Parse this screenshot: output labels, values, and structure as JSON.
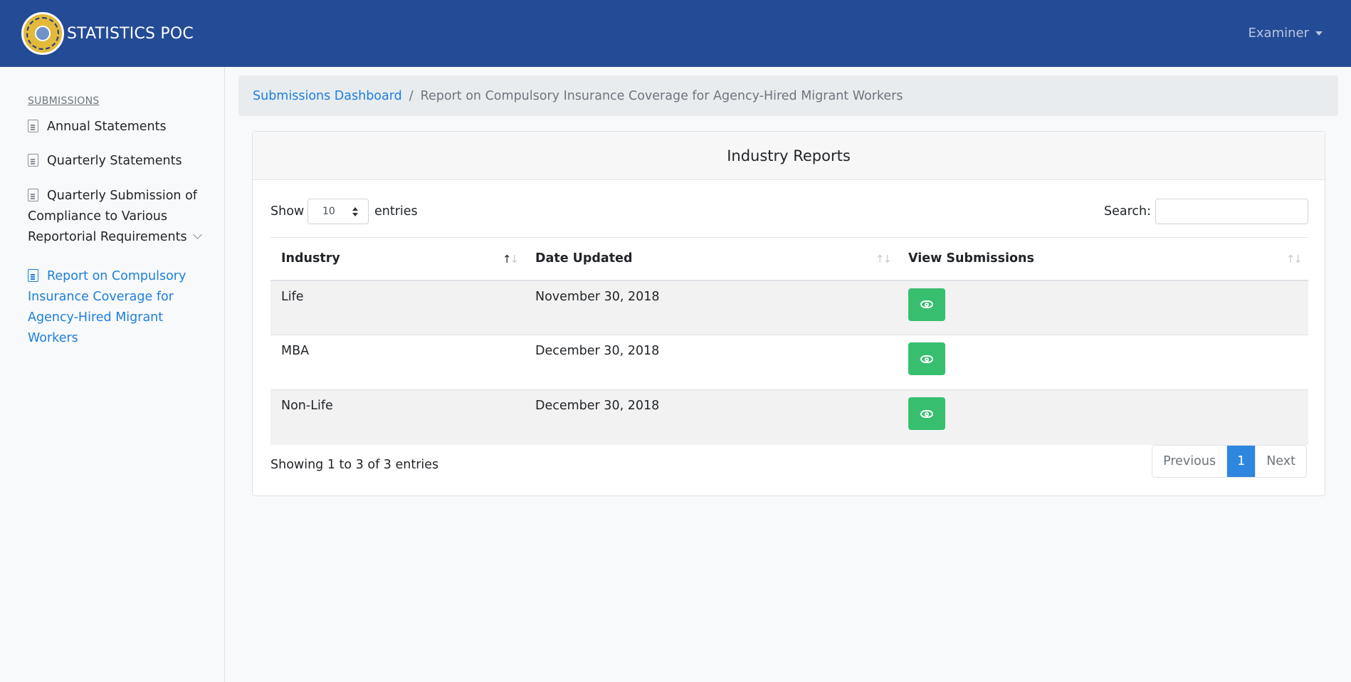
{
  "header": {
    "brand_text": "STATISTICS POC",
    "logo_icon": "seal-logo-icon",
    "user_menu_label": "Examiner",
    "bg_color": "#244b96"
  },
  "sidebar": {
    "heading": "SUBMISSIONS",
    "items": [
      {
        "label": "Annual Statements",
        "icon": "document-icon"
      },
      {
        "label": "Quarterly Statements",
        "icon": "document-icon"
      },
      {
        "label": "Quarterly Submission of Compliance to Various Reportorial Requirements",
        "icon": "document-icon",
        "has_submenu": true
      },
      {
        "label": "Report on Compulsory Insurance Coverage for Agency-Hired Migrant Workers",
        "icon": "document-icon",
        "active": true
      }
    ]
  },
  "breadcrumb": {
    "link": "Submissions Dashboard",
    "separator": "/",
    "current": "Report on Compulsory Insurance Coverage for Agency-Hired Migrant Workers"
  },
  "card": {
    "title": "Industry Reports"
  },
  "table_controls": {
    "show_label": "Show",
    "page_size": "10",
    "entries_label": "entries",
    "search_label": "Search:",
    "search_value": ""
  },
  "table": {
    "columns": [
      "Industry",
      "Date Updated",
      "View Submissions"
    ],
    "rows": [
      {
        "industry": "Life",
        "date_updated": "November 30, 2018"
      },
      {
        "industry": "MBA",
        "date_updated": "December 30, 2018"
      },
      {
        "industry": "Non-Life",
        "date_updated": "December 30, 2018"
      }
    ],
    "view_button_icon": "eye-icon",
    "view_button_color": "#37bf6f"
  },
  "footer": {
    "info": "Showing 1 to 3 of 3 entries",
    "pagination": {
      "previous": "Previous",
      "current": "1",
      "next": "Next"
    }
  }
}
